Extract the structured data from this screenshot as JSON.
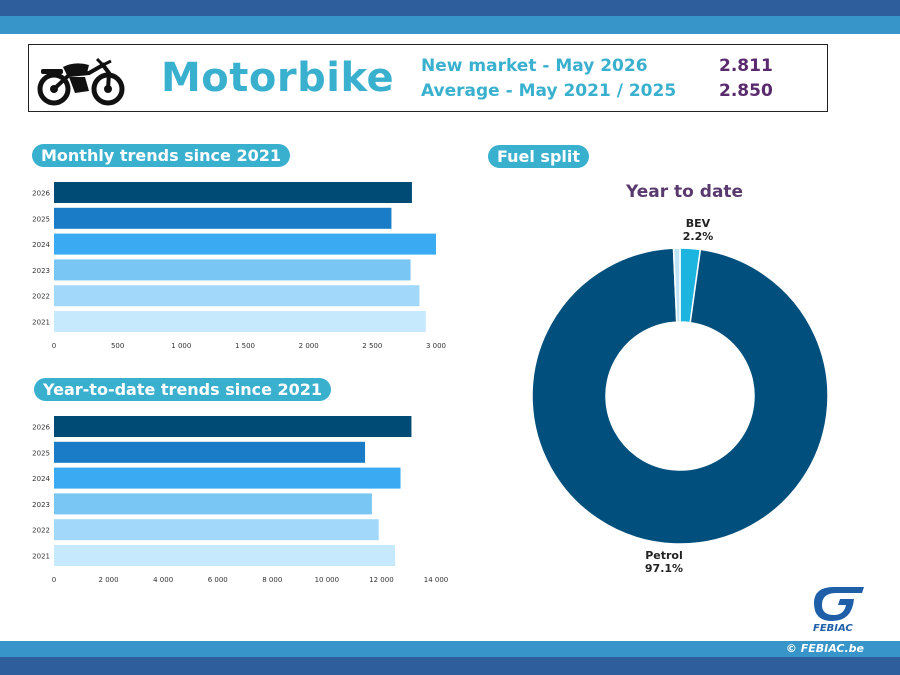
{
  "header": {
    "title": "Motorbike",
    "new_market_label": "New market - May 2026",
    "new_market_value": "2.811",
    "average_label": "Average - May 2021 / 2025",
    "average_value": "2.850"
  },
  "footer": {
    "copyright": "© FEBIAC.be",
    "logo_text": "FEBIAC"
  },
  "colors": {
    "accent": "#3ab0cf",
    "band_dark": "#2e5e9c",
    "band_light": "#3795c9",
    "value_purple": "#5a2a6e",
    "petrol": "#004f7c",
    "bev": "#1cb5e0",
    "other": "#bfe4f7",
    "bars": [
      "#004a76",
      "#1a7cc7",
      "#3aaaf3",
      "#79c6f5",
      "#a2d9fb",
      "#c7e9fd"
    ]
  },
  "chart_data": [
    {
      "type": "bar",
      "orientation": "horizontal",
      "title": "Monthly trends since 2021",
      "categories": [
        "2026",
        "2025",
        "2024",
        "2023",
        "2022",
        "2021"
      ],
      "values": [
        2811,
        2650,
        3000,
        2800,
        2870,
        2920
      ],
      "xlim": [
        0,
        3000
      ],
      "xticks": [
        0,
        500,
        1000,
        1500,
        2000,
        2500,
        3000
      ],
      "xtick_labels": [
        "0",
        "500",
        "1 000",
        "1 500",
        "2 000",
        "2 500",
        "3 000"
      ],
      "grid": false
    },
    {
      "type": "bar",
      "orientation": "horizontal",
      "title": "Year-to-date trends since 2021",
      "categories": [
        "2026",
        "2025",
        "2024",
        "2023",
        "2022",
        "2021"
      ],
      "values": [
        13100,
        11400,
        12700,
        11650,
        11900,
        12500
      ],
      "xlim": [
        0,
        14000
      ],
      "xticks": [
        0,
        2000,
        4000,
        6000,
        8000,
        10000,
        12000,
        14000
      ],
      "xtick_labels": [
        "0",
        "2 000",
        "4 000",
        "6 000",
        "8 000",
        "10 000",
        "12 000",
        "14 000"
      ],
      "grid": false
    },
    {
      "type": "pie",
      "donut": true,
      "title": "Fuel split",
      "subtitle": "Year to date",
      "slices": [
        {
          "label": "BEV",
          "value": 2.2,
          "display": "2.2%"
        },
        {
          "label": "Petrol",
          "value": 97.1,
          "display": "97.1%"
        },
        {
          "label": "",
          "value": 0.7
        }
      ]
    }
  ]
}
